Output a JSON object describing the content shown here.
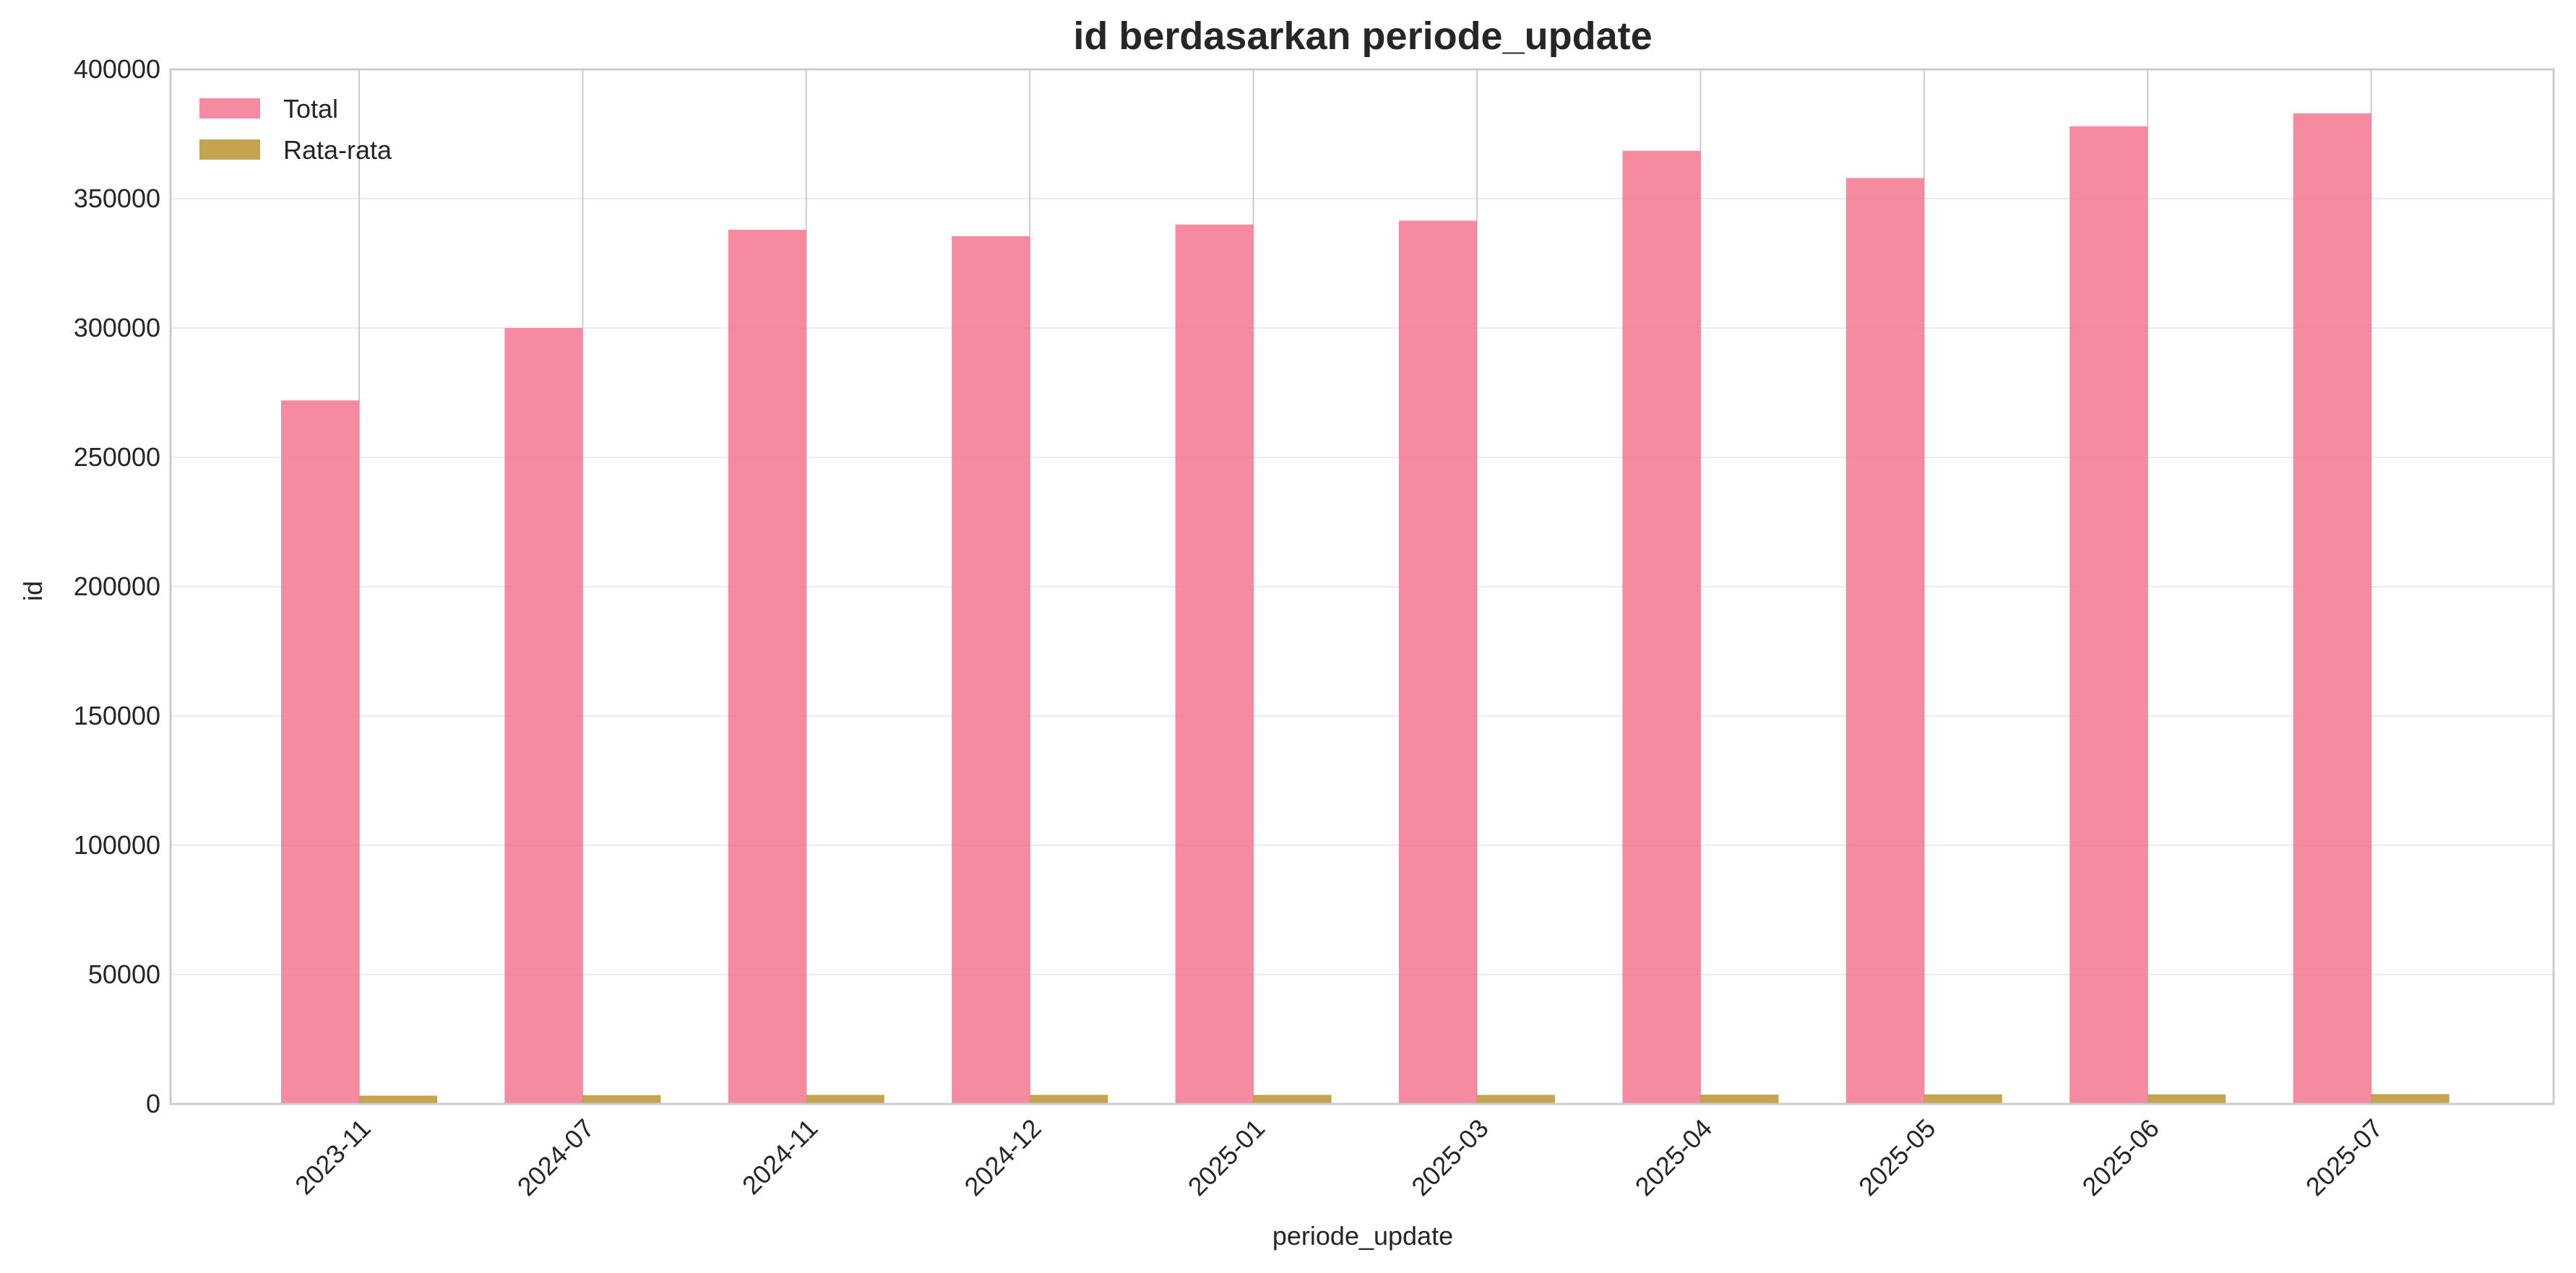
{
  "chart_data": {
    "type": "bar",
    "title": "id berdasarkan periode_update",
    "xlabel": "periode_update",
    "ylabel": "id",
    "ylim": [
      0,
      400000
    ],
    "yticks": [
      "0",
      "50000",
      "100000",
      "150000",
      "200000",
      "250000",
      "300000",
      "350000",
      "400000"
    ],
    "categories": [
      "2023-11",
      "2024-07",
      "2024-11",
      "2024-12",
      "2025-01",
      "2025-03",
      "2025-04",
      "2025-05",
      "2025-06",
      "2025-07"
    ],
    "series": [
      {
        "name": "Total",
        "values": [
          272000,
          300000,
          338000,
          335500,
          340000,
          341500,
          368500,
          358000,
          378000,
          383000
        ]
      },
      {
        "name": "Rata-rata",
        "values": [
          3200,
          3400,
          3500,
          3500,
          3500,
          3500,
          3600,
          3700,
          3700,
          3800
        ]
      }
    ],
    "legend": "top-left",
    "grid": true
  },
  "colors": {
    "Total": "#f4758f",
    "Rata-rata": "#bf9a3e"
  }
}
